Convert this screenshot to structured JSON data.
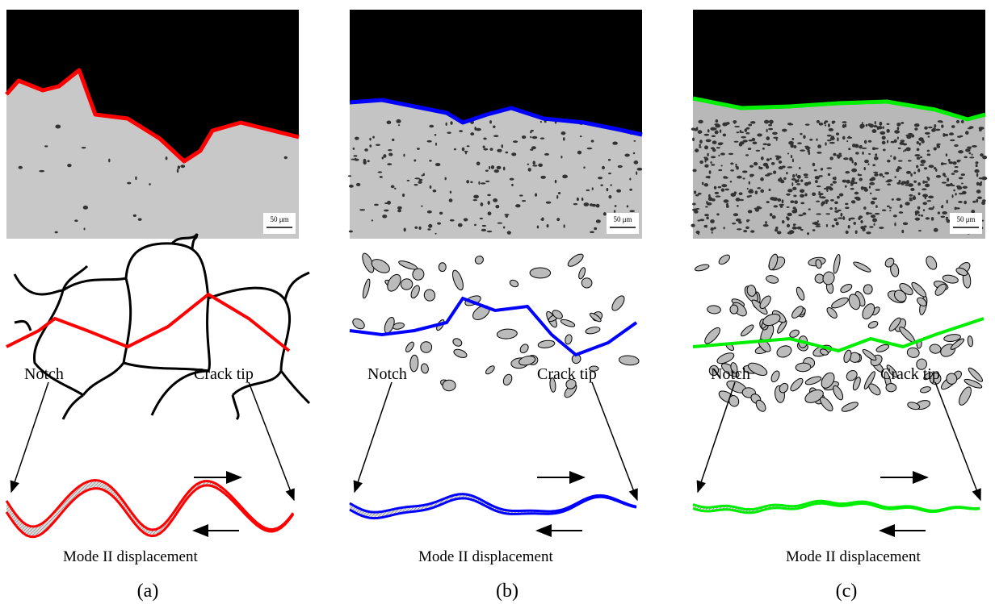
{
  "panels": [
    {
      "label": "(a)",
      "scale_bar": "50 μm",
      "notch": "Notch",
      "crack_tip": "Crack tip",
      "caption": "Mode II displacement",
      "color": "#ff0000"
    },
    {
      "label": "(b)",
      "scale_bar": "50 μm",
      "notch": "Notch",
      "crack_tip": "Crack tip",
      "caption": "Mode II displacement",
      "color": "#0000ff"
    },
    {
      "label": "(c)",
      "scale_bar": "50 μm",
      "notch": "Notch",
      "crack_tip": "Crack tip",
      "caption": "Mode II displacement",
      "color": "#00ee00"
    }
  ]
}
